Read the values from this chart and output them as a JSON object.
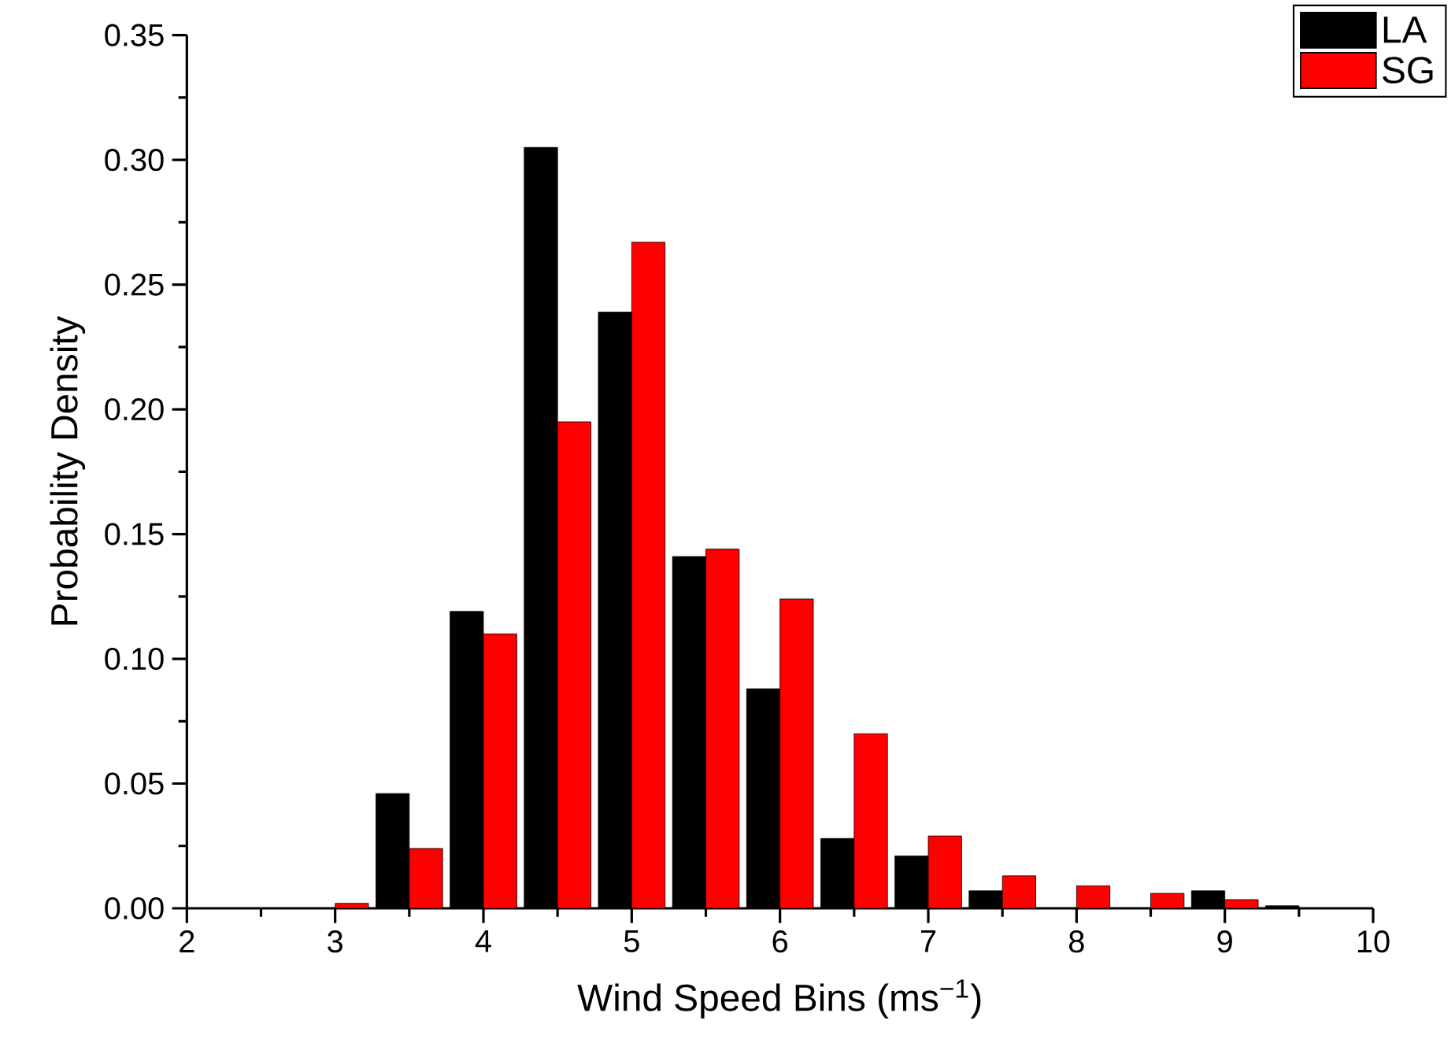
{
  "chart_data": {
    "type": "bar",
    "xlabel": "Wind Speed Bins (ms$^{−1}$)",
    "ylabel": "Probability Density",
    "x": [
      3.0,
      3.5,
      4.0,
      4.5,
      5.0,
      5.5,
      6.0,
      6.5,
      7.0,
      7.5,
      8.0,
      8.5,
      9.0,
      9.5
    ],
    "series": [
      {
        "name": "LA",
        "color": "#000000",
        "values": [
          null,
          0.046,
          0.119,
          0.305,
          0.239,
          0.141,
          0.088,
          0.028,
          0.021,
          0.007,
          null,
          null,
          0.007,
          0.001
        ]
      },
      {
        "name": "SG",
        "color": "#ff0000",
        "values": [
          0.002,
          0.024,
          0.11,
          0.195,
          0.267,
          0.144,
          0.124,
          0.07,
          0.029,
          0.013,
          0.009,
          0.006,
          0.0035,
          null
        ]
      }
    ],
    "xlim": [
      2,
      10
    ],
    "ylim": [
      0,
      0.35
    ],
    "xticks": [
      2,
      3,
      4,
      5,
      6,
      7,
      8,
      9,
      10
    ],
    "yticks": [
      {
        "value": 0,
        "label": "0.00"
      },
      {
        "value": 0.05,
        "label": "0.05"
      },
      {
        "value": 0.1,
        "label": "0.10"
      },
      {
        "value": 0.15,
        "label": "0.15"
      },
      {
        "value": 0.2,
        "label": "0.20"
      },
      {
        "value": 0.25,
        "label": "0.25"
      },
      {
        "value": 0.3,
        "label": "0.30"
      },
      {
        "value": 0.35,
        "label": "0.35"
      }
    ],
    "legend": "top right"
  }
}
